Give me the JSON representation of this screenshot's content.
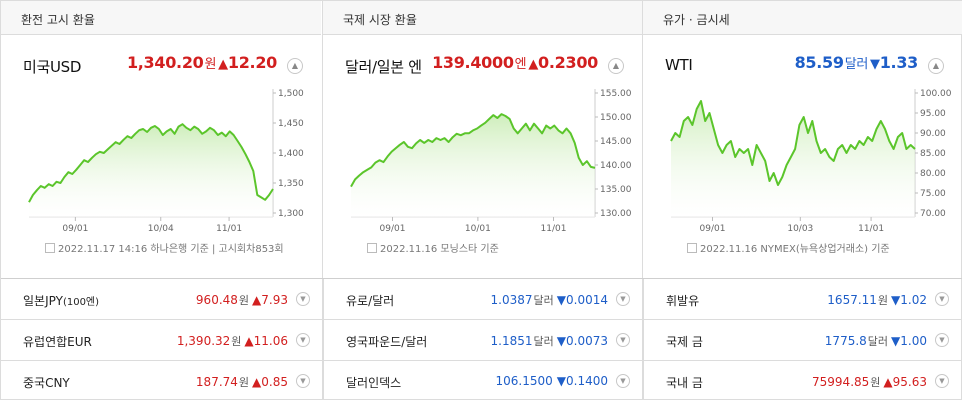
{
  "columns": [
    {
      "header": "환전 고시 환율",
      "title": "미국USD",
      "value": "1,340.20",
      "unit": "원",
      "arrow": "▲",
      "change": "12.20",
      "direction": "up",
      "source": "2022.11.17 14:16 하나은행 기준 | 고시회차853회",
      "chart_data": {
        "type": "area",
        "y_ticks": [
          "1,500",
          "1,450",
          "1,400",
          "1,350",
          "1,300"
        ],
        "ylim": [
          1300,
          1500
        ],
        "x_ticks": [
          "09/01",
          "10/04",
          "11/01"
        ],
        "x_tick_pos": [
          0.19,
          0.54,
          0.82
        ],
        "values": [
          1318,
          1330,
          1338,
          1345,
          1342,
          1348,
          1345,
          1352,
          1350,
          1360,
          1368,
          1365,
          1372,
          1380,
          1388,
          1385,
          1392,
          1398,
          1402,
          1400,
          1406,
          1412,
          1418,
          1415,
          1422,
          1428,
          1425,
          1432,
          1438,
          1440,
          1435,
          1442,
          1445,
          1440,
          1430,
          1436,
          1440,
          1432,
          1444,
          1448,
          1442,
          1438,
          1444,
          1440,
          1432,
          1436,
          1442,
          1438,
          1430,
          1434,
          1428,
          1436,
          1430,
          1420,
          1410,
          1398,
          1385,
          1370,
          1330,
          1326,
          1322,
          1330,
          1340
        ],
        "color": "#5bc52b"
      }
    },
    {
      "header": "국제 시장 환율",
      "title": "달러/일본 엔",
      "value": "139.4000",
      "unit": "엔",
      "arrow": "▲",
      "change": "0.2300",
      "direction": "up",
      "source": "2022.11.16 모닝스타 기준",
      "chart_data": {
        "type": "area",
        "y_ticks": [
          "155.00",
          "150.00",
          "145.00",
          "140.00",
          "135.00",
          "130.00"
        ],
        "ylim": [
          130,
          155
        ],
        "x_ticks": [
          "09/01",
          "10/01",
          "11/01"
        ],
        "x_tick_pos": [
          0.17,
          0.52,
          0.83
        ],
        "values": [
          135.5,
          137,
          137.8,
          138.5,
          139,
          139.5,
          140.5,
          141,
          140.6,
          141.8,
          142.8,
          143.5,
          144.2,
          144.8,
          143.8,
          143.5,
          144.5,
          145.2,
          144.6,
          145.2,
          144.8,
          145.6,
          145.2,
          145.6,
          144.8,
          145.8,
          146.5,
          146.2,
          146.6,
          146.6,
          147.2,
          147.6,
          148.2,
          148.8,
          149.6,
          150.4,
          149.8,
          150.6,
          150.2,
          149.6,
          147.6,
          146.6,
          147.6,
          148.6,
          147.2,
          148.6,
          147.6,
          146.6,
          148.2,
          147.6,
          148.2,
          147.2,
          146.6,
          147.6,
          146.6,
          144.6,
          141.5,
          140,
          140.8,
          139.6,
          139.4
        ],
        "color": "#5bc52b"
      }
    },
    {
      "header": "유가 · 금시세",
      "title": "WTI",
      "value": "85.59",
      "unit": "달러",
      "arrow": "▼",
      "change": "1.33",
      "direction": "down",
      "source": "2022.11.16 NYMEX(뉴욕상업거래소) 기준",
      "chart_data": {
        "type": "area",
        "y_ticks": [
          "100.00",
          "95.00",
          "90.00",
          "85.00",
          "80.00",
          "75.00",
          "70.00"
        ],
        "ylim": [
          70,
          100
        ],
        "x_ticks": [
          "09/01",
          "10/03",
          "11/01"
        ],
        "x_tick_pos": [
          0.17,
          0.53,
          0.82
        ],
        "values": [
          88,
          90,
          89,
          93,
          94,
          92,
          96,
          98,
          93,
          95,
          91,
          87,
          85,
          87,
          88,
          84,
          86,
          85,
          86,
          82,
          87,
          85,
          83,
          78,
          80,
          77,
          79,
          82,
          84,
          86,
          92,
          94,
          90,
          93,
          88,
          85,
          86,
          84,
          83,
          86,
          87,
          85,
          87,
          86,
          88,
          87,
          89,
          88,
          91,
          93,
          91,
          88,
          86,
          89,
          90,
          86,
          87,
          86
        ],
        "color": "#5bc52b"
      }
    }
  ],
  "rows": [
    [
      {
        "name": "일본JPY",
        "name_small": "(100엔)",
        "value": "960.48",
        "unit": "원",
        "arrow": "▲",
        "change": "7.93",
        "direction": "up"
      },
      {
        "name": "유럽연합EUR",
        "name_small": "",
        "value": "1,390.32",
        "unit": "원",
        "arrow": "▲",
        "change": "11.06",
        "direction": "up"
      },
      {
        "name": "중국CNY",
        "name_small": "",
        "value": "187.74",
        "unit": "원",
        "arrow": "▲",
        "change": "0.85",
        "direction": "up"
      }
    ],
    [
      {
        "name": "유로/달러",
        "name_small": "",
        "value": "1.0387",
        "unit": "달러",
        "arrow": "▼",
        "change": "0.0014",
        "direction": "down"
      },
      {
        "name": "영국파운드/달러",
        "name_small": "",
        "value": "1.1851",
        "unit": "달러",
        "arrow": "▼",
        "change": "0.0073",
        "direction": "down"
      },
      {
        "name": "달러인덱스",
        "name_small": "",
        "value": "106.1500",
        "unit": "",
        "arrow": "▼",
        "change": "0.1400",
        "direction": "down"
      }
    ],
    [
      {
        "name": "휘발유",
        "name_small": "",
        "value": "1657.11",
        "unit": "원",
        "arrow": "▼",
        "change": "1.02",
        "direction": "down"
      },
      {
        "name": "국제 금",
        "name_small": "",
        "value": "1775.8",
        "unit": "달러",
        "arrow": "▼",
        "change": "1.00",
        "direction": "down"
      },
      {
        "name": "국내 금",
        "name_small": "",
        "value": "75994.85",
        "unit": "원",
        "arrow": "▲",
        "change": "95.63",
        "direction": "up"
      }
    ]
  ]
}
